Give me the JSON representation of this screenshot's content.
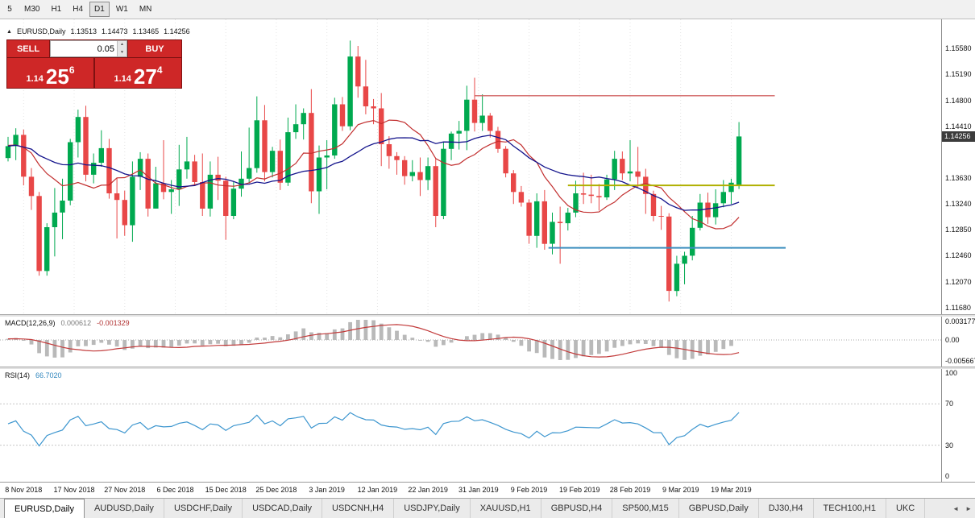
{
  "colors": {
    "up": "#00a94f",
    "down": "#e84747",
    "grid": "#e4e4e4",
    "macd_bar": "#b9b9b9",
    "macd_signal": "#c23b3b",
    "rsi_line": "#3d96cf",
    "accent_red": "#ce2727",
    "price_tag_bg": "#3c3c3c"
  },
  "toolbar": {
    "timeframes": [
      {
        "label": "5",
        "active": false
      },
      {
        "label": "M30",
        "active": false
      },
      {
        "label": "H1",
        "active": false
      },
      {
        "label": "H4",
        "active": false
      },
      {
        "label": "D1",
        "active": true
      },
      {
        "label": "W1",
        "active": false
      },
      {
        "label": "MN",
        "active": false
      }
    ]
  },
  "symbol_line": {
    "symbol": "EURUSD,Daily",
    "open": "1.13513",
    "high": "1.14473",
    "low": "1.13465",
    "close": "1.14256"
  },
  "one_click": {
    "sell_label": "SELL",
    "buy_label": "BUY",
    "volume": "0.05",
    "sell_price": {
      "prefix": "1.14",
      "big": "25",
      "sup": "6"
    },
    "buy_price": {
      "prefix": "1.14",
      "big": "27",
      "sup": "4"
    }
  },
  "price_axis": {
    "ticks": [
      "1.15580",
      "1.15190",
      "1.14800",
      "1.14410",
      "1.13630",
      "1.13240",
      "1.12850",
      "1.12460",
      "1.12070",
      "1.11680"
    ],
    "current": "1.14256"
  },
  "chart_data": {
    "type": "candlestick",
    "symbol": "EURUSD",
    "timeframe": "Daily",
    "ylim": [
      1.1158,
      1.1602
    ],
    "x0": 10,
    "spacing": 9.65,
    "candles": [
      [
        1.1393,
        1.1425,
        1.1388,
        1.1411
      ],
      [
        1.1411,
        1.1438,
        1.139,
        1.1428
      ],
      [
        1.1428,
        1.1436,
        1.1352,
        1.1365
      ],
      [
        1.1365,
        1.1378,
        1.1315,
        1.1336
      ],
      [
        1.1336,
        1.1342,
        1.1216,
        1.1223
      ],
      [
        1.1223,
        1.1295,
        1.1216,
        1.1289
      ],
      [
        1.1289,
        1.1348,
        1.1245,
        1.1311
      ],
      [
        1.1311,
        1.1362,
        1.1271,
        1.1329
      ],
      [
        1.1329,
        1.1422,
        1.1322,
        1.1417
      ],
      [
        1.1417,
        1.1466,
        1.1394,
        1.1455
      ],
      [
        1.1455,
        1.1472,
        1.1358,
        1.1368
      ],
      [
        1.1368,
        1.14,
        1.1355,
        1.1386
      ],
      [
        1.1386,
        1.1435,
        1.138,
        1.1408
      ],
      [
        1.1408,
        1.1422,
        1.1332,
        1.134
      ],
      [
        1.134,
        1.1363,
        1.1272,
        1.133
      ],
      [
        1.133,
        1.1344,
        1.1276,
        1.1292
      ],
      [
        1.1292,
        1.1388,
        1.1267,
        1.1365
      ],
      [
        1.1365,
        1.1402,
        1.1345,
        1.1392
      ],
      [
        1.1392,
        1.14,
        1.1305,
        1.1317
      ],
      [
        1.1317,
        1.138,
        1.1317,
        1.1355
      ],
      [
        1.1355,
        1.142,
        1.1331,
        1.1342
      ],
      [
        1.1342,
        1.136,
        1.1309,
        1.1346
      ],
      [
        1.1346,
        1.1413,
        1.1321,
        1.1376
      ],
      [
        1.1376,
        1.1425,
        1.1362,
        1.1388
      ],
      [
        1.1388,
        1.1398,
        1.1351,
        1.1357
      ],
      [
        1.1357,
        1.14,
        1.1306,
        1.1317
      ],
      [
        1.1317,
        1.1388,
        1.1305,
        1.1368
      ],
      [
        1.1368,
        1.1395,
        1.133,
        1.1359
      ],
      [
        1.1359,
        1.1365,
        1.127,
        1.1306
      ],
      [
        1.1306,
        1.1358,
        1.1301,
        1.1347
      ],
      [
        1.1347,
        1.1403,
        1.1335,
        1.1362
      ],
      [
        1.1362,
        1.1439,
        1.1356,
        1.1378
      ],
      [
        1.1378,
        1.1486,
        1.1371,
        1.145
      ],
      [
        1.145,
        1.1473,
        1.1358,
        1.1372
      ],
      [
        1.1372,
        1.141,
        1.1364,
        1.1404
      ],
      [
        1.1404,
        1.1421,
        1.1345,
        1.1356
      ],
      [
        1.1356,
        1.1454,
        1.1351,
        1.1432
      ],
      [
        1.1432,
        1.1474,
        1.1422,
        1.1444
      ],
      [
        1.1444,
        1.1468,
        1.1421,
        1.1461
      ],
      [
        1.1461,
        1.1497,
        1.1325,
        1.1343
      ],
      [
        1.1343,
        1.1412,
        1.1309,
        1.1394
      ],
      [
        1.1394,
        1.142,
        1.1346,
        1.1397
      ],
      [
        1.1397,
        1.1484,
        1.1392,
        1.1474
      ],
      [
        1.1474,
        1.1485,
        1.1434,
        1.1441
      ],
      [
        1.1441,
        1.157,
        1.1435,
        1.1546
      ],
      [
        1.1546,
        1.1562,
        1.1484,
        1.1501
      ],
      [
        1.1501,
        1.1541,
        1.1459,
        1.1471
      ],
      [
        1.1471,
        1.1482,
        1.1444,
        1.1468
      ],
      [
        1.1468,
        1.1491,
        1.1381,
        1.1414
      ],
      [
        1.1414,
        1.1426,
        1.1377,
        1.1396
      ],
      [
        1.1396,
        1.1402,
        1.1368,
        1.139
      ],
      [
        1.139,
        1.1396,
        1.1353,
        1.1366
      ],
      [
        1.1366,
        1.139,
        1.1358,
        1.1372
      ],
      [
        1.1372,
        1.1394,
        1.1336,
        1.136
      ],
      [
        1.136,
        1.1394,
        1.1345,
        1.1381
      ],
      [
        1.1381,
        1.1392,
        1.1289,
        1.1306
      ],
      [
        1.1306,
        1.1418,
        1.1301,
        1.1407
      ],
      [
        1.1407,
        1.1433,
        1.139,
        1.143
      ],
      [
        1.143,
        1.1449,
        1.1406,
        1.1434
      ],
      [
        1.1434,
        1.1502,
        1.1405,
        1.1481
      ],
      [
        1.1481,
        1.1514,
        1.1433,
        1.1446
      ],
      [
        1.1446,
        1.1489,
        1.1434,
        1.1457
      ],
      [
        1.1457,
        1.1461,
        1.1424,
        1.1434
      ],
      [
        1.1434,
        1.144,
        1.1401,
        1.1407
      ],
      [
        1.1407,
        1.1411,
        1.1364,
        1.137
      ],
      [
        1.137,
        1.1375,
        1.1324,
        1.1342
      ],
      [
        1.1342,
        1.1351,
        1.132,
        1.1326
      ],
      [
        1.1326,
        1.1331,
        1.1264,
        1.1276
      ],
      [
        1.1276,
        1.134,
        1.1258,
        1.1328
      ],
      [
        1.1328,
        1.1345,
        1.1255,
        1.1264
      ],
      [
        1.1264,
        1.1311,
        1.1248,
        1.1297
      ],
      [
        1.1297,
        1.132,
        1.1234,
        1.1295
      ],
      [
        1.1295,
        1.1318,
        1.1284,
        1.1311
      ],
      [
        1.1311,
        1.1359,
        1.1304,
        1.134
      ],
      [
        1.134,
        1.1371,
        1.1324,
        1.1338
      ],
      [
        1.1338,
        1.1368,
        1.1325,
        1.1336
      ],
      [
        1.1336,
        1.1354,
        1.1314,
        1.1334
      ],
      [
        1.1334,
        1.1368,
        1.133,
        1.1361
      ],
      [
        1.1361,
        1.1404,
        1.1345,
        1.1392
      ],
      [
        1.1392,
        1.1403,
        1.136,
        1.137
      ],
      [
        1.137,
        1.142,
        1.1358,
        1.1373
      ],
      [
        1.1373,
        1.141,
        1.1349,
        1.1365
      ],
      [
        1.1365,
        1.1377,
        1.1309,
        1.1339
      ],
      [
        1.1339,
        1.1344,
        1.1298,
        1.1306
      ],
      [
        1.1306,
        1.1321,
        1.1285,
        1.1305
      ],
      [
        1.1305,
        1.131,
        1.1177,
        1.1193
      ],
      [
        1.1193,
        1.1246,
        1.1185,
        1.1234
      ],
      [
        1.1234,
        1.1252,
        1.1203,
        1.1246
      ],
      [
        1.1246,
        1.1306,
        1.1239,
        1.1288
      ],
      [
        1.1288,
        1.1339,
        1.1284,
        1.1326
      ],
      [
        1.1326,
        1.1341,
        1.1294,
        1.1304
      ],
      [
        1.1304,
        1.1346,
        1.1293,
        1.1325
      ],
      [
        1.1325,
        1.136,
        1.1319,
        1.1342
      ],
      [
        1.1342,
        1.1362,
        1.1324,
        1.1356
      ],
      [
        1.13513,
        1.14473,
        1.13465,
        1.14256
      ]
    ],
    "moving_averages": [
      {
        "period": 10,
        "color": "#c22f2f",
        "width": 1.2
      },
      {
        "period": 21,
        "color": "#14148c",
        "width": 1.3
      }
    ],
    "hlines": [
      {
        "price": 1.1487,
        "color": "#d06060",
        "width": 1.4,
        "ci_start": 60,
        "ci_end": 98.6
      },
      {
        "price": 1.1352,
        "color": "#b0b000",
        "width": 2,
        "ci_start": 72,
        "ci_end": 98.6
      },
      {
        "price": 1.1258,
        "color": "#3d8fbf",
        "width": 2,
        "ci_start": 69.5,
        "ci_end": 100
      }
    ],
    "date_ticks": [
      {
        "label": "8 Nov 2018",
        "ci": 2
      },
      {
        "label": "17 Nov 2018",
        "ci": 8.5
      },
      {
        "label": "27 Nov 2018",
        "ci": 15
      },
      {
        "label": "6 Dec 2018",
        "ci": 21.5
      },
      {
        "label": "15 Dec 2018",
        "ci": 28
      },
      {
        "label": "25 Dec 2018",
        "ci": 34.5
      },
      {
        "label": "3 Jan 2019",
        "ci": 41
      },
      {
        "label": "12 Jan 2019",
        "ci": 47.5
      },
      {
        "label": "22 Jan 2019",
        "ci": 54
      },
      {
        "label": "31 Jan 2019",
        "ci": 60.5
      },
      {
        "label": "9 Feb 2019",
        "ci": 67
      },
      {
        "label": "19 Feb 2019",
        "ci": 73.5
      },
      {
        "label": "28 Feb 2019",
        "ci": 80
      },
      {
        "label": "9 Mar 2019",
        "ci": 86.5
      },
      {
        "label": "19 Mar 2019",
        "ci": 93
      }
    ]
  },
  "macd": {
    "label": "MACD(12,26,9)",
    "value_main": "0.000612",
    "value_signal": "-0.001329",
    "params": {
      "fast": 12,
      "slow": 26,
      "signal": 9
    },
    "axis_labels": {
      "top": "0.003177",
      "zero": "0.00",
      "bottom": "-0.005667"
    }
  },
  "rsi": {
    "label": "RSI(14)",
    "value": "66.7020",
    "period": 14,
    "levels": [
      100,
      70,
      30,
      0
    ],
    "level_labels": [
      "100",
      "70",
      "30",
      "0"
    ],
    "dashed_levels": [
      70,
      30
    ]
  },
  "tabs": {
    "items": [
      {
        "label": "EURUSD,Daily",
        "active": true
      },
      {
        "label": "AUDUSD,Daily",
        "active": false
      },
      {
        "label": "USDCHF,Daily",
        "active": false
      },
      {
        "label": "USDCAD,Daily",
        "active": false
      },
      {
        "label": "USDCNH,H4",
        "active": false
      },
      {
        "label": "USDJPY,Daily",
        "active": false
      },
      {
        "label": "XAUUSD,H1",
        "active": false
      },
      {
        "label": "GBPUSD,H4",
        "active": false
      },
      {
        "label": "SP500,M15",
        "active": false
      },
      {
        "label": "GBPUSD,Daily",
        "active": false
      },
      {
        "label": "DJ30,H4",
        "active": false
      },
      {
        "label": "TECH100,H1",
        "active": false
      },
      {
        "label": "UKC",
        "active": false
      }
    ],
    "scroll_left": "◄",
    "scroll_right": "►"
  }
}
